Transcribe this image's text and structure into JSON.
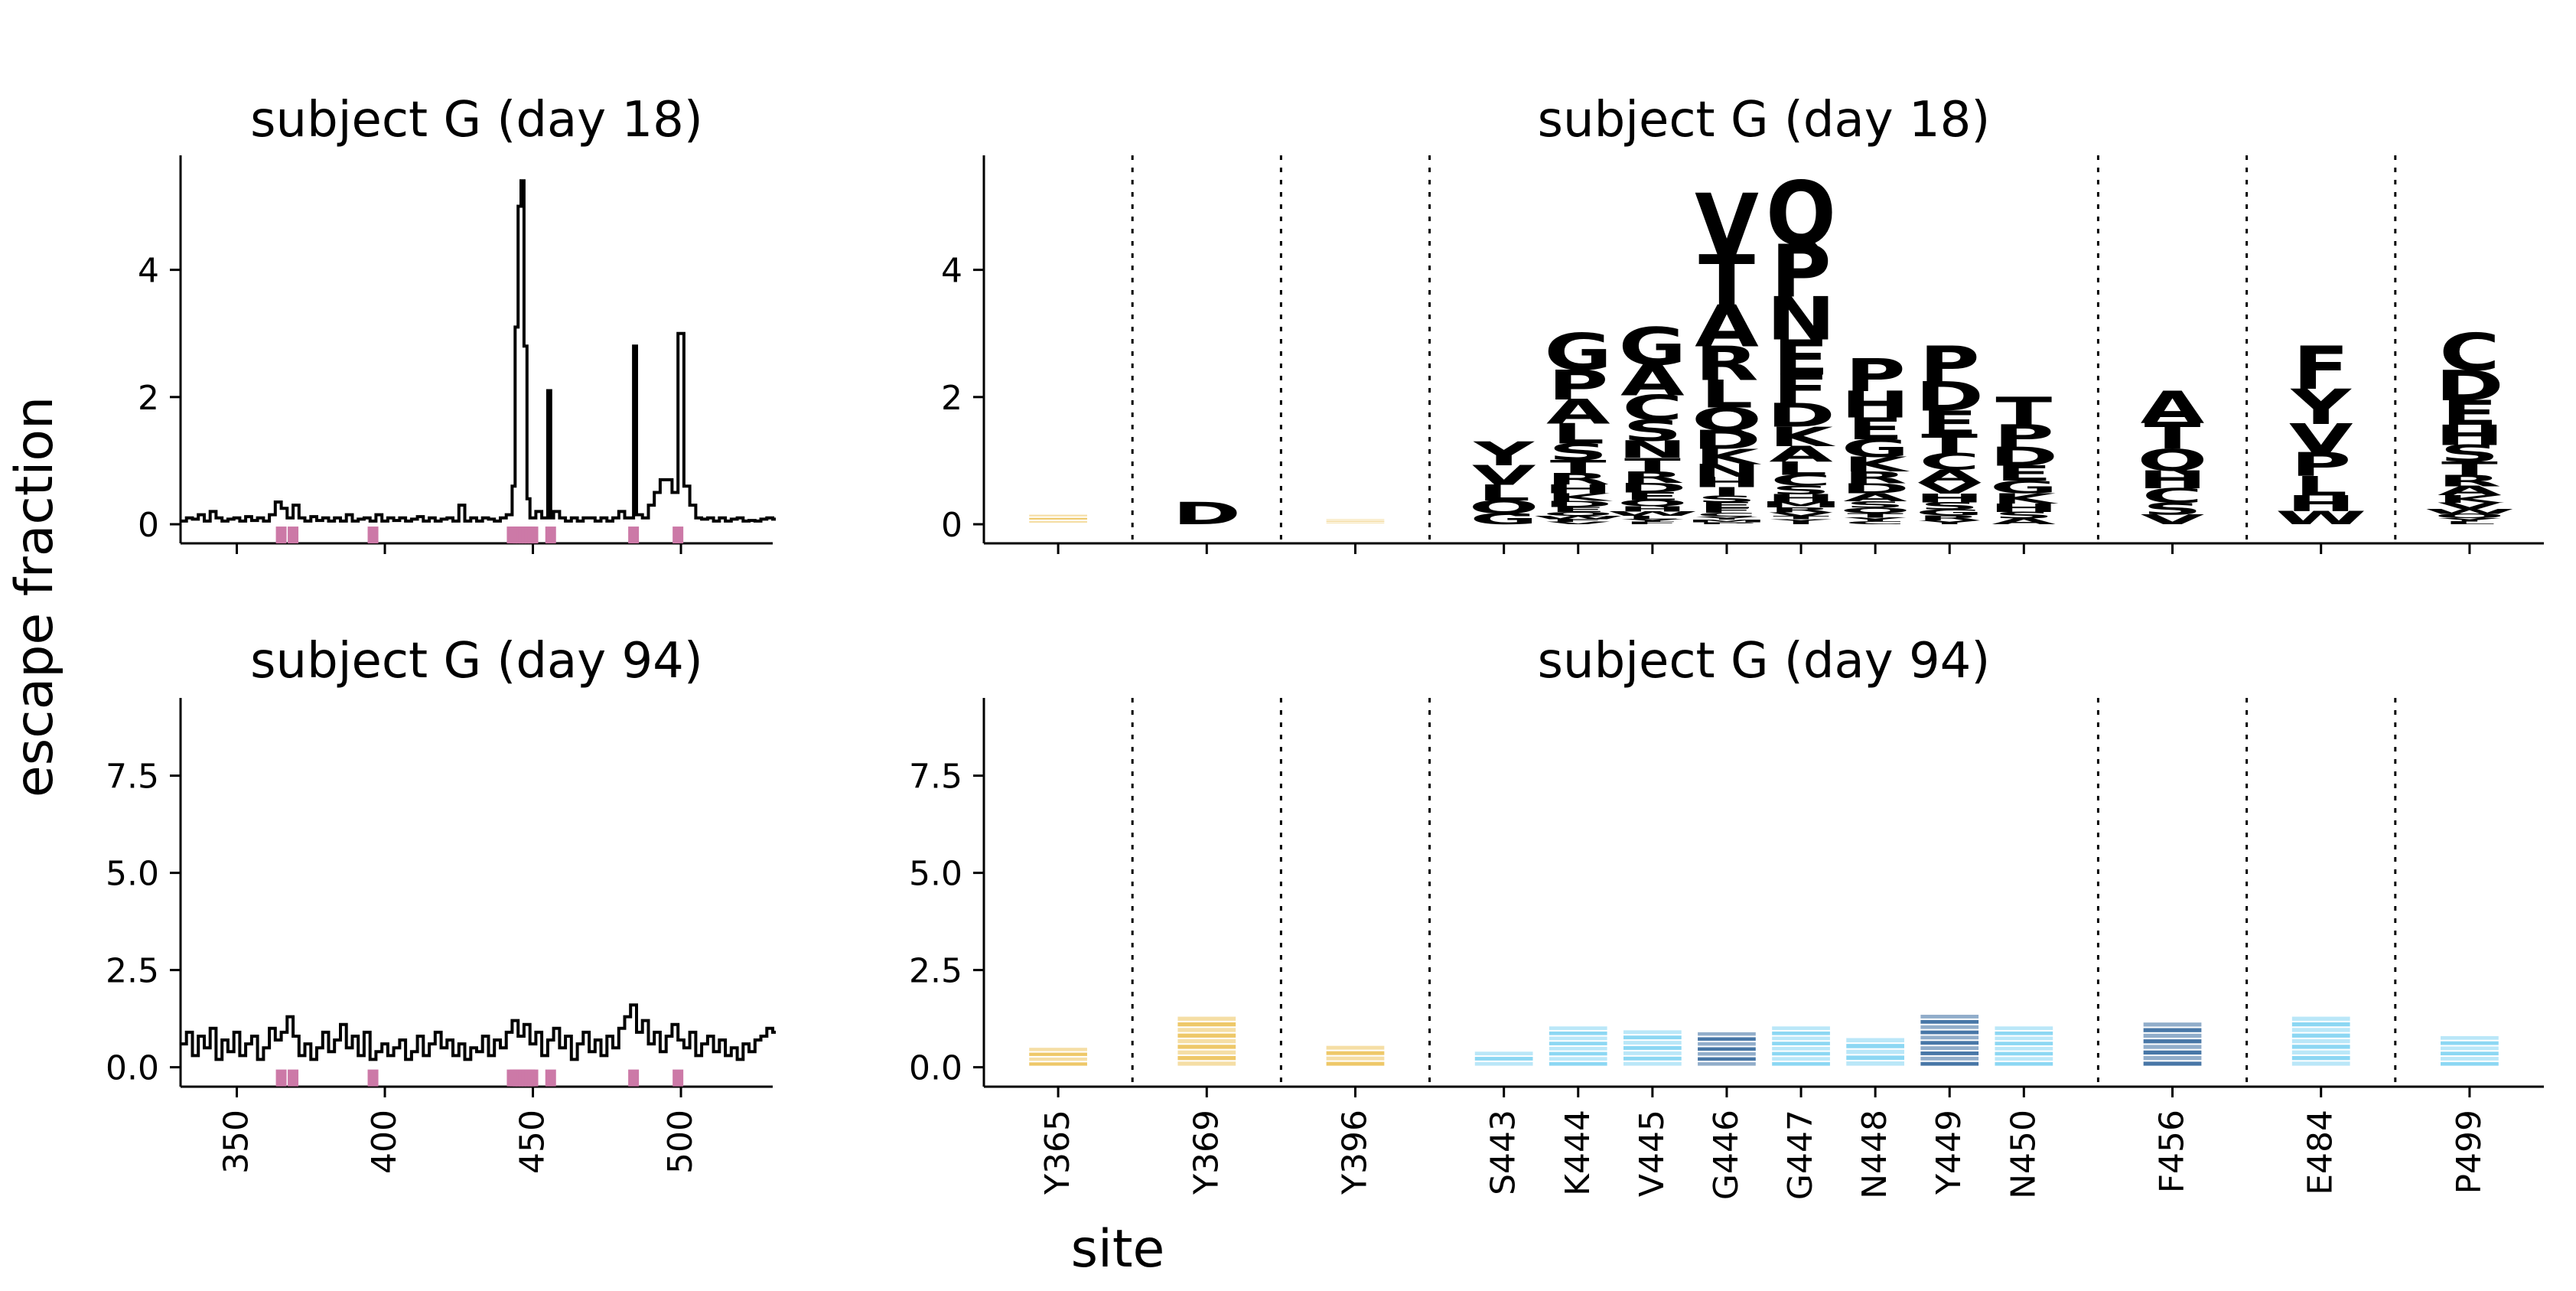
{
  "figure": {
    "ylabel": "escape fraction",
    "xlabel": "site"
  },
  "colors": {
    "line": "#000000",
    "site_marker": "#cc79a7",
    "gold": "#e8b637",
    "light_blue": "#66c9ef",
    "dark_blue": "#0b4a8a",
    "separator": "#000000"
  },
  "chart_data": [
    {
      "id": "line_day18",
      "type": "line",
      "title": "subject G (day 18)",
      "xlim": [
        331,
        531
      ],
      "ylim": [
        -0.3,
        5.8
      ],
      "yticks": [
        0,
        2,
        4
      ],
      "xticks": [
        350,
        400,
        450,
        500
      ],
      "show_xticklabels": false,
      "highlight_sites": [
        365,
        369,
        396,
        443,
        444,
        445,
        446,
        447,
        448,
        449,
        450,
        456,
        484,
        499
      ],
      "series": [
        {
          "x": [
            331,
            333,
            335,
            337,
            339,
            341,
            343,
            345,
            347,
            349,
            351,
            353,
            355,
            357,
            359,
            361,
            363,
            365,
            367,
            369,
            371,
            373,
            375,
            377,
            379,
            381,
            383,
            385,
            387,
            389,
            391,
            393,
            395,
            397,
            399,
            401,
            403,
            405,
            407,
            409,
            411,
            413,
            415,
            417,
            419,
            421,
            423,
            425,
            427,
            429,
            431,
            433,
            435,
            437,
            439,
            441,
            443,
            444,
            445,
            446,
            447,
            448,
            449,
            450,
            451,
            453,
            455,
            456,
            457,
            459,
            461,
            463,
            465,
            467,
            469,
            471,
            473,
            475,
            477,
            479,
            481,
            483,
            484,
            485,
            487,
            489,
            491,
            493,
            495,
            497,
            499,
            501,
            503,
            505,
            507,
            509,
            511,
            513,
            515,
            517,
            519,
            521,
            523,
            525,
            527,
            529,
            531
          ],
          "y": [
            0.05,
            0.1,
            0.08,
            0.15,
            0.05,
            0.2,
            0.1,
            0.05,
            0.08,
            0.1,
            0.05,
            0.12,
            0.06,
            0.1,
            0.05,
            0.15,
            0.35,
            0.25,
            0.1,
            0.3,
            0.1,
            0.05,
            0.12,
            0.06,
            0.1,
            0.05,
            0.1,
            0.05,
            0.15,
            0.05,
            0.08,
            0.1,
            0.05,
            0.15,
            0.05,
            0.1,
            0.06,
            0.1,
            0.05,
            0.08,
            0.12,
            0.05,
            0.1,
            0.05,
            0.08,
            0.1,
            0.05,
            0.3,
            0.05,
            0.1,
            0.05,
            0.1,
            0.08,
            0.05,
            0.1,
            0.15,
            0.6,
            3.1,
            5.0,
            5.4,
            2.8,
            0.4,
            0.1,
            0.1,
            0.2,
            0.1,
            2.1,
            0.1,
            0.2,
            0.1,
            0.05,
            0.1,
            0.05,
            0.1,
            0.1,
            0.05,
            0.1,
            0.05,
            0.1,
            0.2,
            0.1,
            0.1,
            2.8,
            0.15,
            0.1,
            0.3,
            0.5,
            0.7,
            0.7,
            0.5,
            3.0,
            0.6,
            0.3,
            0.1,
            0.08,
            0.1,
            0.05,
            0.1,
            0.05,
            0.08,
            0.1,
            0.05,
            0.06,
            0.05,
            0.08,
            0.1,
            0.08
          ]
        }
      ]
    },
    {
      "id": "logo_day18",
      "type": "logo",
      "title": "subject G (day 18)",
      "ylim": [
        -0.3,
        5.8
      ],
      "yticks": [
        0,
        2,
        4
      ],
      "categories": [
        "Y365",
        "Y369",
        "Y396",
        "S443",
        "K444",
        "V445",
        "G446",
        "G447",
        "N448",
        "Y449",
        "N450",
        "F456",
        "E484",
        "P499"
      ],
      "groups": [
        [
          "Y365"
        ],
        [
          "Y369"
        ],
        [
          "Y396"
        ],
        [
          "S443",
          "K444",
          "V445",
          "G446",
          "G447",
          "N448",
          "Y449",
          "N450"
        ],
        [
          "F456"
        ],
        [
          "E484"
        ],
        [
          "P499"
        ]
      ],
      "color_class": [
        "gold",
        "gold",
        "gold",
        "light",
        "light",
        "light",
        "dark",
        "light",
        "light",
        "dark",
        "light",
        "dark",
        "light",
        "light"
      ],
      "values": [
        0.15,
        0.35,
        0.08,
        1.3,
        3.0,
        3.1,
        5.2,
        5.4,
        2.6,
        2.8,
        2.0,
        2.1,
        2.8,
        3.0
      ],
      "letters": [
        "",
        "D",
        "",
        "YVLQG",
        "GPALSTRHKDEQWFV",
        "GACSNTRDEQHWLYF",
        "VTARLQDKNHISEFCYMP",
        "QPNEFDKALCSHMRVTYI",
        "PHEGKRDASQTYC",
        "PDETCAVHSGRY",
        "TPDEGKHSA",
        "ATQHCSV",
        "FYVPLHW",
        "CDEHSTRAKVWQYL"
      ]
    },
    {
      "id": "line_day94",
      "type": "line",
      "title": "subject G (day 94)",
      "xlim": [
        331,
        531
      ],
      "ylim": [
        -0.5,
        9.5
      ],
      "yticks": [
        0.0,
        2.5,
        5.0,
        7.5
      ],
      "ytick_labels": [
        "0.0",
        "2.5",
        "5.0",
        "7.5"
      ],
      "xticks": [
        350,
        400,
        450,
        500
      ],
      "xtick_labels": [
        "350",
        "400",
        "450",
        "500"
      ],
      "highlight_sites": [
        365,
        369,
        396,
        443,
        444,
        445,
        446,
        447,
        448,
        449,
        450,
        456,
        484,
        499
      ],
      "series": [
        {
          "x": [
            331,
            333,
            335,
            337,
            339,
            341,
            343,
            345,
            347,
            349,
            351,
            353,
            355,
            357,
            359,
            361,
            363,
            365,
            367,
            369,
            371,
            373,
            375,
            377,
            379,
            381,
            383,
            385,
            387,
            389,
            391,
            393,
            395,
            397,
            399,
            401,
            403,
            405,
            407,
            409,
            411,
            413,
            415,
            417,
            419,
            421,
            423,
            425,
            427,
            429,
            431,
            433,
            435,
            437,
            439,
            441,
            443,
            445,
            447,
            449,
            451,
            453,
            455,
            457,
            459,
            461,
            463,
            465,
            467,
            469,
            471,
            473,
            475,
            477,
            479,
            481,
            483,
            485,
            487,
            489,
            491,
            493,
            495,
            497,
            499,
            501,
            503,
            505,
            507,
            509,
            511,
            513,
            515,
            517,
            519,
            521,
            523,
            525,
            527,
            529,
            531
          ],
          "y": [
            0.6,
            0.9,
            0.3,
            0.8,
            0.5,
            1.0,
            0.2,
            0.7,
            0.4,
            0.9,
            0.3,
            0.6,
            0.8,
            0.2,
            0.5,
            1.0,
            0.7,
            0.9,
            1.3,
            0.8,
            0.3,
            0.6,
            0.2,
            0.5,
            0.9,
            0.4,
            0.7,
            1.1,
            0.5,
            0.8,
            0.3,
            0.9,
            0.2,
            0.4,
            0.6,
            0.3,
            0.5,
            0.7,
            0.2,
            0.4,
            0.8,
            0.3,
            0.6,
            0.9,
            0.5,
            0.7,
            0.3,
            0.6,
            0.2,
            0.5,
            0.4,
            0.8,
            0.3,
            0.7,
            0.5,
            0.9,
            1.2,
            0.8,
            1.1,
            0.6,
            0.9,
            0.3,
            0.7,
            1.0,
            0.5,
            0.8,
            0.2,
            0.6,
            0.9,
            0.4,
            0.7,
            0.3,
            0.8,
            0.5,
            1.0,
            1.3,
            1.6,
            0.9,
            1.2,
            0.6,
            0.9,
            0.4,
            0.8,
            1.1,
            0.7,
            0.5,
            0.9,
            0.3,
            0.6,
            0.8,
            0.4,
            0.7,
            0.3,
            0.5,
            0.2,
            0.6,
            0.4,
            0.7,
            0.8,
            1.0,
            0.9
          ]
        }
      ]
    },
    {
      "id": "logo_day94",
      "type": "logo",
      "title": "subject G (day 94)",
      "ylim": [
        -0.5,
        9.5
      ],
      "yticks": [
        0.0,
        2.5,
        5.0,
        7.5
      ],
      "ytick_labels": [
        "0.0",
        "2.5",
        "5.0",
        "7.5"
      ],
      "categories": [
        "Y365",
        "Y369",
        "Y396",
        "S443",
        "K444",
        "V445",
        "G446",
        "G447",
        "N448",
        "Y449",
        "N450",
        "F456",
        "E484",
        "P499"
      ],
      "groups": [
        [
          "Y365"
        ],
        [
          "Y369"
        ],
        [
          "Y396"
        ],
        [
          "S443",
          "K444",
          "V445",
          "G446",
          "G447",
          "N448",
          "Y449",
          "N450"
        ],
        [
          "F456"
        ],
        [
          "E484"
        ],
        [
          "P499"
        ]
      ],
      "color_class": [
        "gold",
        "gold",
        "gold",
        "light",
        "light",
        "light",
        "dark",
        "light",
        "light",
        "dark",
        "light",
        "dark",
        "light",
        "light"
      ],
      "values": [
        0.5,
        1.3,
        0.55,
        0.4,
        1.05,
        0.95,
        0.9,
        1.05,
        0.75,
        1.35,
        1.05,
        1.15,
        1.3,
        0.8
      ]
    }
  ]
}
